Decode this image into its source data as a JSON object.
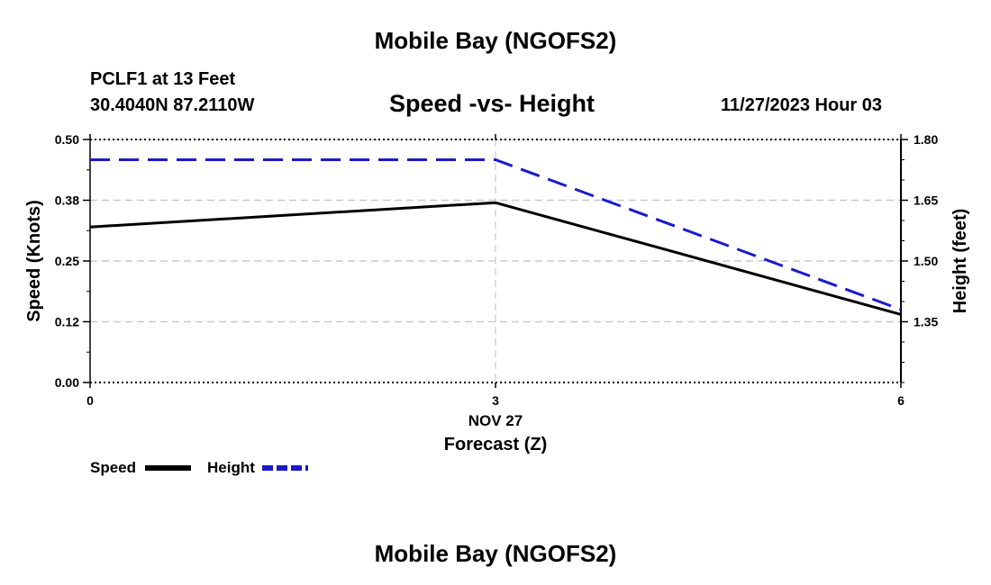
{
  "header": {
    "title": "Mobile Bay (NGOFS2)",
    "station": "PCLF1 at 13 Feet",
    "coords": "30.4040N  87.2110W",
    "subtitle": "Speed -vs- Height",
    "datetime": "11/27/2023 Hour 03"
  },
  "footer": {
    "title": "Mobile Bay (NGOFS2)"
  },
  "chart_data": {
    "type": "line",
    "xlabel": "Forecast (Z)",
    "x_date_label": "NOV 27",
    "x": [
      0,
      3,
      6
    ],
    "xlim": [
      0,
      6
    ],
    "x_ticks": [
      "0",
      "3",
      "6"
    ],
    "y_left": {
      "label": "Speed (Knots)",
      "lim": [
        0,
        0.5
      ],
      "ticks": [
        "0.00",
        "0.12",
        "0.25",
        "0.38",
        "0.50"
      ],
      "tick_values": [
        0,
        0.125,
        0.25,
        0.375,
        0.5
      ]
    },
    "y_right": {
      "label": "Height (feet)",
      "lim": [
        1.2,
        1.8
      ],
      "ticks": [
        "1.35",
        "1.50",
        "1.65",
        "1.80"
      ],
      "tick_values": [
        1.35,
        1.5,
        1.65,
        1.8
      ]
    },
    "series": [
      {
        "name": "Speed",
        "axis": "left",
        "color": "#000000",
        "dash": false,
        "x": [
          0,
          3,
          6
        ],
        "values": [
          0.32,
          0.37,
          0.14
        ]
      },
      {
        "name": "Height",
        "axis": "right",
        "color": "#1a1acc",
        "dash": true,
        "x": [
          0,
          3,
          6
        ],
        "values": [
          1.75,
          1.75,
          1.38
        ]
      }
    ],
    "legend": [
      {
        "label": "Speed",
        "color": "#000000",
        "dash": false
      },
      {
        "label": "Height",
        "color": "#1a1acc",
        "dash": true
      }
    ]
  }
}
